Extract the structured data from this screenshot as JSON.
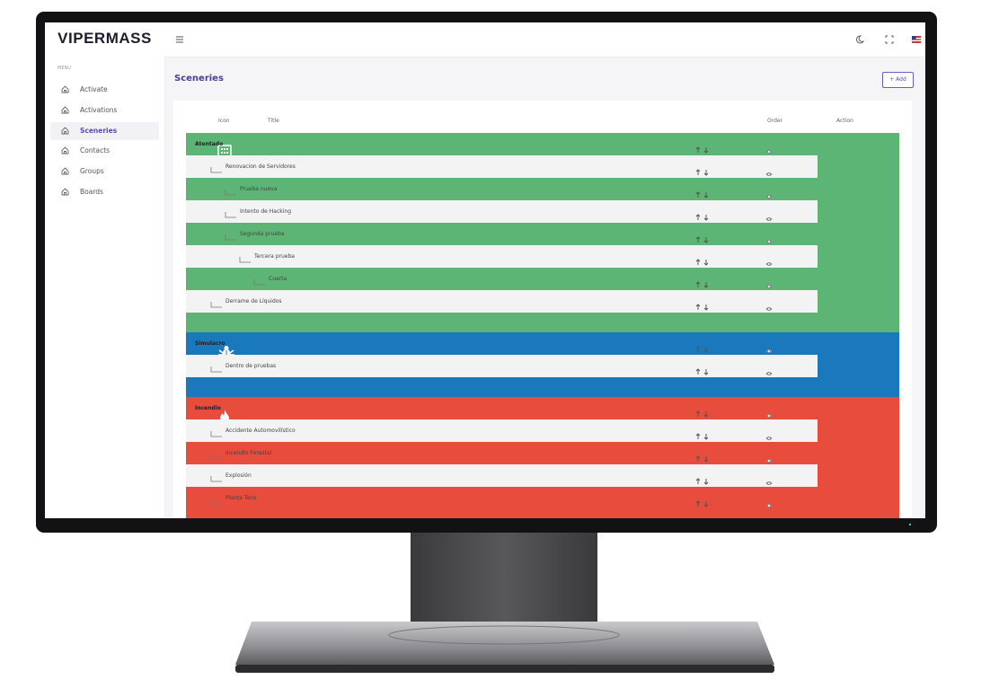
{
  "sidebar": {
    "logo": "VIPERMASS",
    "menu_label": "MENU",
    "items": [
      {
        "label": "Activate"
      },
      {
        "label": "Activations"
      },
      {
        "label": "Sceneries",
        "active": true
      },
      {
        "label": "Contacts"
      },
      {
        "label": "Groups"
      },
      {
        "label": "Boards"
      }
    ]
  },
  "page": {
    "title": "Sceneries",
    "add_button": "+ Add"
  },
  "table": {
    "columns": [
      "Icon",
      "Title",
      "Order",
      "Action"
    ],
    "groups": [
      {
        "color": "#5cb574",
        "rows": [
          {
            "title": "Atentado",
            "children": [
              {
                "title": "Renovacion de Servidores",
                "children": [
                  {
                    "title": "Prueba nueva"
                  },
                  {
                    "title": "Intento de Hacking"
                  },
                  {
                    "title": "Segunda prueba",
                    "children": [
                      {
                        "title": "Tercera prueba",
                        "children": [
                          {
                            "title": "Cuarta"
                          }
                        ]
                      }
                    ]
                  }
                ]
              },
              {
                "title": "Derrame de Líquidos"
              }
            ]
          }
        ]
      },
      {
        "color": "#1a78bd",
        "rows": [
          {
            "title": "Simulacro",
            "children": [
              {
                "title": "Dentro de pruebas"
              }
            ]
          }
        ]
      },
      {
        "color": "#e74c3c",
        "rows": [
          {
            "title": "Incendio",
            "children": [
              {
                "title": "Accidente Automovilístico"
              },
              {
                "title": "Incendio Forestal"
              },
              {
                "title": "Explosión"
              },
              {
                "title": "Planta Teno"
              }
            ]
          }
        ]
      }
    ]
  }
}
